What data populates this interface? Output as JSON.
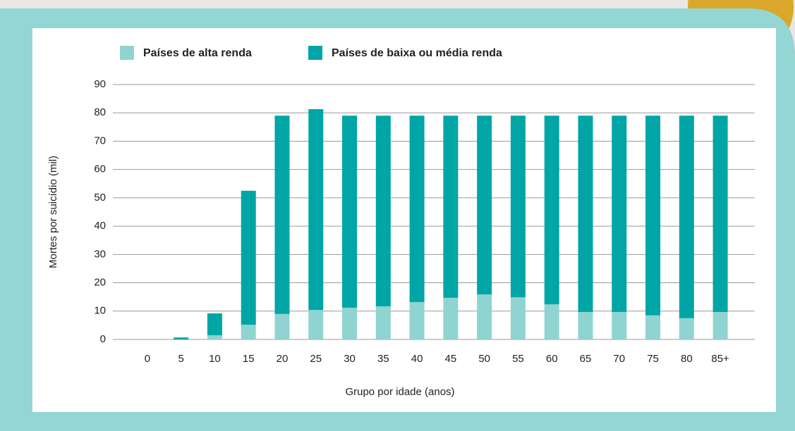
{
  "chart_data": {
    "type": "stacked-bar",
    "x_label": "Grupo por idade (anos)",
    "y_label": "Mortes por suicídio (mil)",
    "categories": [
      "0",
      "5",
      "10",
      "15",
      "20",
      "25",
      "30",
      "35",
      "40",
      "45",
      "50",
      "55",
      "60",
      "65",
      "70",
      "75",
      "80",
      "85+"
    ],
    "series": [
      {
        "name": "Países de alta renda",
        "color": "#8fd4d1",
        "values": [
          0,
          0,
          1.5,
          5.2,
          9,
          10.4,
          11.2,
          11.7,
          13.2,
          14.7,
          15.9,
          14.9,
          12.4,
          9.7,
          9.7,
          8.5,
          7.5,
          9.7
        ]
      },
      {
        "name": "Países de baixa ou média renda",
        "color": "#00a5a6",
        "values": [
          0,
          0.7,
          7.7,
          47.3,
          70,
          70.9,
          67.8,
          67.3,
          65.8,
          64.3,
          63.1,
          64.1,
          66.6,
          69.3,
          69.3,
          70.5,
          71.5,
          69.3
        ]
      }
    ],
    "ylim": [
      0,
      90
    ],
    "yticks": [
      0,
      10,
      20,
      30,
      40,
      50,
      60,
      70,
      80,
      90
    ],
    "grid": true
  }
}
